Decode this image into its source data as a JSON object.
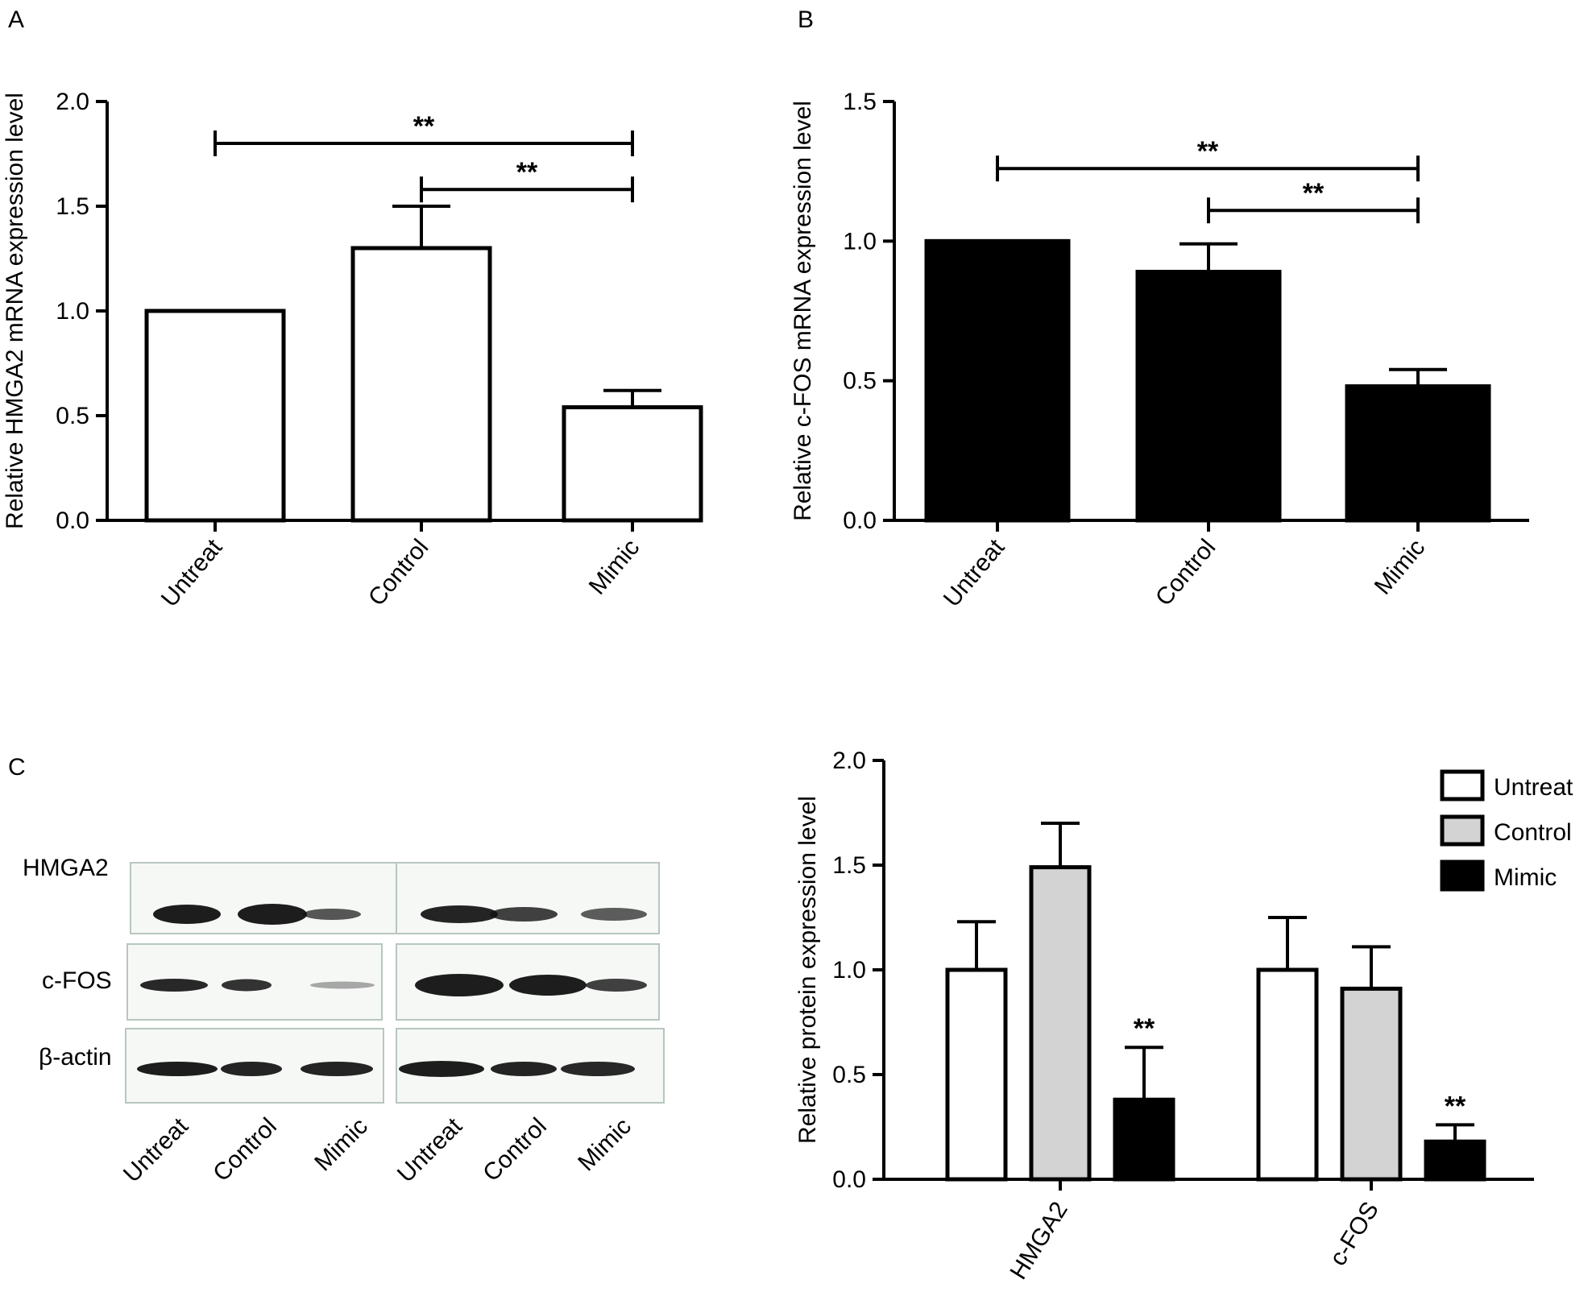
{
  "panels": {
    "A": {
      "letter": "A"
    },
    "B": {
      "letter": "B"
    },
    "C": {
      "letter": "C"
    }
  },
  "chart_data": [
    {
      "type": "bar",
      "panel": "A",
      "ylabel": "Relative HMGA2 mRNA expression level",
      "xlabel": "",
      "categories": [
        "Untreat",
        "Control",
        "Mimic"
      ],
      "values": [
        1.0,
        1.3,
        0.54
      ],
      "errors": [
        0.0,
        0.2,
        0.08
      ],
      "ylim": [
        0,
        2.0
      ],
      "yticks": [
        "0.0",
        "0.5",
        "1.0",
        "1.5",
        "2.0"
      ],
      "bar_color": "#ffffff",
      "significance": [
        {
          "from": "Untreat",
          "to": "Mimic",
          "label": "**",
          "y": 1.8
        },
        {
          "from": "Control",
          "to": "Mimic",
          "label": "**",
          "y": 1.58
        }
      ]
    },
    {
      "type": "bar",
      "panel": "B",
      "ylabel": "Relative c-FOS mRNA expression level",
      "xlabel": "",
      "categories": [
        "Untreat",
        "Control",
        "Mimic"
      ],
      "values": [
        1.0,
        0.89,
        0.48
      ],
      "errors": [
        0.0,
        0.1,
        0.06
      ],
      "ylim": [
        0,
        1.5
      ],
      "yticks": [
        "0.0",
        "0.5",
        "1.0",
        "1.5"
      ],
      "bar_color": "#000000",
      "significance": [
        {
          "from": "Untreat",
          "to": "Mimic",
          "label": "**",
          "y": 1.26
        },
        {
          "from": "Control",
          "to": "Mimic",
          "label": "**",
          "y": 1.11
        }
      ]
    },
    {
      "type": "bar",
      "panel": "C",
      "ylabel": "Relative protein expression level",
      "xlabel": "",
      "categories": [
        "HMGA2",
        "c-FOS"
      ],
      "series": [
        {
          "name": "Untreat",
          "values": [
            1.0,
            1.0
          ],
          "errors": [
            0.23,
            0.25
          ],
          "color": "#ffffff"
        },
        {
          "name": "Control",
          "values": [
            1.49,
            0.91
          ],
          "errors": [
            0.21,
            0.2
          ],
          "color": "#d3d3d3"
        },
        {
          "name": "Mimic",
          "values": [
            0.38,
            0.18
          ],
          "errors": [
            0.25,
            0.08
          ],
          "color": "#000000"
        }
      ],
      "ylim": [
        0,
        2.0
      ],
      "yticks": [
        "0.0",
        "0.5",
        "1.0",
        "1.5",
        "2.0"
      ],
      "legend": "top-right",
      "significance": [
        {
          "category": "HMGA2",
          "series": "Mimic",
          "label": "**"
        },
        {
          "category": "c-FOS",
          "series": "Mimic",
          "label": "**"
        }
      ]
    }
  ],
  "blot": {
    "rows": [
      "HMGA2",
      "c-FOS",
      "β-actin"
    ],
    "lanes": [
      "Untreat",
      "Control",
      "Mimic",
      "Untreat",
      "Control",
      "Mimic"
    ]
  }
}
